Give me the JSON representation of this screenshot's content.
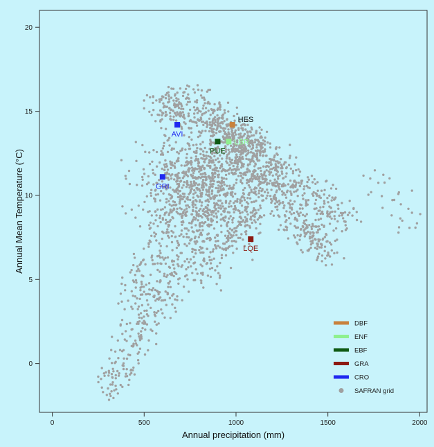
{
  "chart_data": {
    "type": "scatter",
    "xlabel": "Annual precipitation (mm)",
    "ylabel": "Annual Mean Temperature (°C)",
    "xlim": [
      -70,
      2040
    ],
    "ylim": [
      -2.9,
      21.0
    ],
    "x_ticks": [
      0,
      500,
      1000,
      1500,
      2000
    ],
    "y_ticks": [
      0,
      5,
      10,
      15,
      20
    ],
    "grid": false,
    "legend_position": "bottom-right",
    "legend": [
      {
        "label": "DBF",
        "color": "#c8823c",
        "marker": "bar"
      },
      {
        "label": "ENF",
        "color": "#8ff08f",
        "marker": "bar"
      },
      {
        "label": "EBF",
        "color": "#0f5a14",
        "marker": "bar"
      },
      {
        "label": "GRA",
        "color": "#8c1a12",
        "marker": "bar"
      },
      {
        "label": "CRO",
        "color": "#1f28f0",
        "marker": "bar"
      },
      {
        "label": "SAFRAN grid",
        "color": "#a0a0a0",
        "marker": "dot"
      }
    ],
    "sites": [
      {
        "label": "HES",
        "type": "DBF",
        "x": 980,
        "y": 14.2,
        "color": "#c8823c",
        "label_color": "#111111"
      },
      {
        "label": "LBR",
        "type": "ENF",
        "x": 960,
        "y": 13.2,
        "color": "#8ff08f",
        "label_color": "#8ff08f"
      },
      {
        "label": "PUE",
        "type": "EBF",
        "x": 900,
        "y": 13.2,
        "color": "#0f5a14",
        "label_color": "#0f5a14"
      },
      {
        "label": "AVI",
        "type": "CRO",
        "x": 680,
        "y": 14.2,
        "color": "#1f28f0",
        "label_color": "#1f28f0"
      },
      {
        "label": "GRI",
        "type": "CRO",
        "x": 600,
        "y": 11.1,
        "color": "#1f28f0",
        "label_color": "#1f28f0"
      },
      {
        "label": "LQE",
        "type": "GRA",
        "x": 1080,
        "y": 7.4,
        "color": "#8c1a12",
        "label_color": "#8c1a12"
      }
    ],
    "series": [
      {
        "name": "SAFRAN grid",
        "description_points": "dense gray scatter of grid cells",
        "clusters": [
          {
            "x_center": 850,
            "y_center": 10.8,
            "x_spread": 180,
            "y_spread": 1.4,
            "count": 900
          },
          {
            "x_from": 560,
            "y_from": 15.5,
            "x_to": 1100,
            "y_to": 13.0,
            "count": 260
          },
          {
            "x_from": 700,
            "y_from": 16.5,
            "x_to": 1600,
            "y_to": 8.5,
            "count": 420
          },
          {
            "x_from": 950,
            "y_from": 13.5,
            "x_to": 1500,
            "y_to": 6.5,
            "count": 380
          },
          {
            "x_from": 280,
            "y_from": -1.8,
            "x_to": 900,
            "y_to": 10.0,
            "count": 360
          },
          {
            "x_from": 420,
            "y_from": 3.5,
            "x_to": 700,
            "y_to": 10.0,
            "count": 140
          },
          {
            "x_from": 820,
            "y_from": 5.0,
            "x_to": 1100,
            "y_to": 9.5,
            "count": 160
          },
          {
            "x_from": 1700,
            "y_from": 11.7,
            "x_to": 2000,
            "y_to": 8.2,
            "count": 30
          }
        ]
      }
    ]
  }
}
